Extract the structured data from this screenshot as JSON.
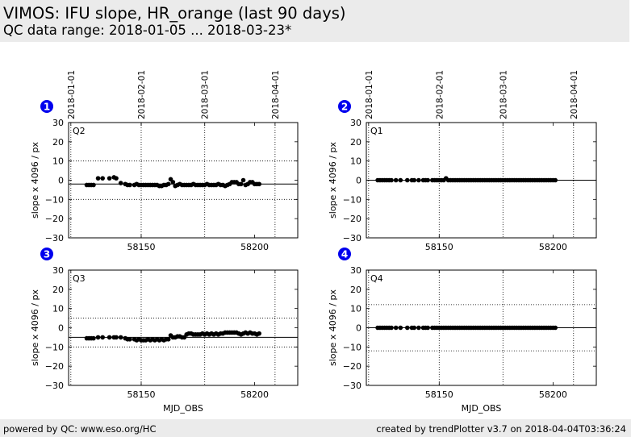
{
  "header": {
    "title": "VIMOS: IFU slope, HR_orange (last 90 days)",
    "subtitle": "QC data range: 2018-01-05 ... 2018-03-23*"
  },
  "footer": {
    "left_text": "powered by QC: www.eso.org/HC",
    "right_text": "created by trendPlotter v3.7 on 2018-04-04T03:36:24"
  },
  "colors": {
    "data": "#000000",
    "badge": "#0000ee",
    "header_bg": "#ebebeb"
  },
  "chart_data": [
    {
      "type": "scatter",
      "badge": "1",
      "quadrant_label": "Q2",
      "xlabel": "",
      "ylabel": "slope x 4096 / px",
      "xlim": [
        58118,
        58219
      ],
      "ylim": [
        -30,
        30
      ],
      "x_ticks": [
        58150,
        58200
      ],
      "y_ticks": [
        30,
        20,
        10,
        0,
        -10,
        -20,
        -30
      ],
      "date_ticks": [
        {
          "mjd": 58119,
          "label": "2018-01-01"
        },
        {
          "mjd": 58150,
          "label": "2018-02-01"
        },
        {
          "mjd": 58178,
          "label": "2018-03-01"
        },
        {
          "mjd": 58209,
          "label": "2018-04-01"
        }
      ],
      "reference_line": -2,
      "threshold_lines": [
        10,
        -10
      ],
      "x": [
        58126,
        58127,
        58128,
        58129,
        58131,
        58133,
        58136,
        58138,
        58139,
        58141,
        58143,
        58144,
        58145,
        58147,
        58148,
        58149,
        58150,
        58151,
        58152,
        58153,
        58154,
        58155,
        58156,
        58157,
        58158,
        58159,
        58160,
        58161,
        58162,
        58163,
        58164,
        58165,
        58166,
        58167,
        58168,
        58169,
        58170,
        58171,
        58172,
        58173,
        58174,
        58175,
        58176,
        58177,
        58178,
        58179,
        58180,
        58181,
        58182,
        58183,
        58184,
        58185,
        58186,
        58187,
        58188,
        58189,
        58190,
        58191,
        58192,
        58193,
        58194,
        58195,
        58196,
        58197,
        58198,
        58199,
        58200,
        58201,
        58202
      ],
      "y": [
        -2.5,
        -2.5,
        -2.5,
        -2.5,
        1,
        1,
        1,
        1.5,
        1,
        -1.5,
        -2,
        -2.5,
        -2.5,
        -2.5,
        -2,
        -2.5,
        -2.5,
        -2.5,
        -2.5,
        -2.5,
        -2.5,
        -2.5,
        -2.5,
        -2.5,
        -3,
        -3,
        -2.5,
        -2.5,
        -2,
        0.5,
        -1,
        -3,
        -2.5,
        -2,
        -2.5,
        -2.5,
        -2.5,
        -2.5,
        -2.5,
        -2,
        -2.5,
        -2.5,
        -2.5,
        -2.5,
        -2.5,
        -2,
        -2.5,
        -2.5,
        -2.5,
        -2.5,
        -2,
        -2.5,
        -2.5,
        -3,
        -2.5,
        -2,
        -1,
        -1,
        -1,
        -2,
        -2,
        0,
        -2.5,
        -2,
        -1,
        -1,
        -2,
        -2,
        -2
      ]
    },
    {
      "type": "scatter",
      "badge": "2",
      "quadrant_label": "Q1",
      "xlabel": "",
      "ylabel": "slope x 4096 / px",
      "xlim": [
        58118,
        58219
      ],
      "ylim": [
        -30,
        30
      ],
      "x_ticks": [
        58150,
        58200
      ],
      "y_ticks": [
        30,
        20,
        10,
        0,
        -10,
        -20,
        -30
      ],
      "date_ticks": [
        {
          "mjd": 58119,
          "label": "2018-01-01"
        },
        {
          "mjd": 58150,
          "label": "2018-02-01"
        },
        {
          "mjd": 58178,
          "label": "2018-03-01"
        },
        {
          "mjd": 58209,
          "label": "2018-04-01"
        }
      ],
      "reference_line": 0,
      "threshold_lines": [],
      "x": [
        58123,
        58124,
        58125,
        58126,
        58127,
        58128,
        58129,
        58131,
        58133,
        58136,
        58138,
        58139,
        58141,
        58143,
        58144,
        58145,
        58147,
        58148,
        58149,
        58150,
        58151,
        58152,
        58153,
        58154,
        58155,
        58156,
        58157,
        58158,
        58159,
        58160,
        58161,
        58162,
        58163,
        58164,
        58165,
        58166,
        58167,
        58168,
        58169,
        58170,
        58171,
        58172,
        58173,
        58174,
        58175,
        58176,
        58177,
        58178,
        58179,
        58180,
        58181,
        58182,
        58183,
        58184,
        58185,
        58186,
        58187,
        58188,
        58189,
        58190,
        58191,
        58192,
        58193,
        58194,
        58195,
        58196,
        58197,
        58198,
        58199,
        58200,
        58201
      ],
      "y": [
        0,
        0,
        0,
        0,
        0,
        0,
        0,
        0,
        0,
        0,
        0,
        0,
        0,
        0,
        0,
        0,
        0,
        0,
        0,
        0,
        0,
        0,
        1,
        0,
        0,
        0,
        0,
        0,
        0,
        0,
        0,
        0,
        0,
        0,
        0,
        0,
        0,
        0,
        0,
        0,
        0,
        0,
        0,
        0,
        0,
        0,
        0,
        0,
        0,
        0,
        0,
        0,
        0,
        0,
        0,
        0,
        0,
        0,
        0,
        0,
        0,
        0,
        0,
        0,
        0,
        0,
        0,
        0,
        0,
        0,
        0
      ]
    },
    {
      "type": "scatter",
      "badge": "3",
      "quadrant_label": "Q3",
      "xlabel": "MJD_OBS",
      "ylabel": "slope x 4096 / px",
      "xlim": [
        58118,
        58219
      ],
      "ylim": [
        -30,
        30
      ],
      "x_ticks": [
        58150,
        58200
      ],
      "y_ticks": [
        30,
        20,
        10,
        0,
        -10,
        -20,
        -30
      ],
      "date_ticks": [
        {
          "mjd": 58119,
          "label": ""
        },
        {
          "mjd": 58150,
          "label": ""
        },
        {
          "mjd": 58178,
          "label": ""
        },
        {
          "mjd": 58209,
          "label": ""
        }
      ],
      "reference_line": -5,
      "threshold_lines": [
        5,
        -10
      ],
      "x": [
        58126,
        58127,
        58128,
        58129,
        58131,
        58133,
        58136,
        58138,
        58139,
        58141,
        58143,
        58144,
        58145,
        58147,
        58148,
        58149,
        58150,
        58151,
        58152,
        58153,
        58154,
        58155,
        58156,
        58157,
        58158,
        58159,
        58160,
        58161,
        58162,
        58163,
        58164,
        58165,
        58166,
        58167,
        58168,
        58169,
        58170,
        58171,
        58172,
        58173,
        58174,
        58175,
        58176,
        58177,
        58178,
        58179,
        58180,
        58181,
        58182,
        58183,
        58184,
        58185,
        58186,
        58187,
        58188,
        58189,
        58190,
        58191,
        58192,
        58193,
        58194,
        58195,
        58196,
        58197,
        58198,
        58199,
        58200,
        58201,
        58202
      ],
      "y": [
        -5.5,
        -5.5,
        -5.5,
        -5.5,
        -5,
        -5,
        -5,
        -5,
        -5,
        -5,
        -5.5,
        -6,
        -6,
        -6,
        -6.5,
        -6,
        -6.5,
        -6.5,
        -6.5,
        -6,
        -6.5,
        -6,
        -6.5,
        -6,
        -6.5,
        -6,
        -6.5,
        -6,
        -6,
        -4,
        -5,
        -5,
        -4.5,
        -4.5,
        -5,
        -5,
        -3.5,
        -3,
        -3,
        -3.5,
        -3.5,
        -3.5,
        -3.5,
        -3,
        -3.5,
        -3,
        -3.5,
        -3,
        -3.5,
        -3,
        -3.5,
        -3,
        -3,
        -2.5,
        -2.5,
        -2.5,
        -2.5,
        -2.5,
        -2.5,
        -3,
        -3.5,
        -3,
        -2.5,
        -3,
        -2.5,
        -3,
        -3,
        -3.5,
        -3
      ]
    },
    {
      "type": "scatter",
      "badge": "4",
      "quadrant_label": "Q4",
      "xlabel": "MJD_OBS",
      "ylabel": "slope x 4096 / px",
      "xlim": [
        58118,
        58219
      ],
      "ylim": [
        -30,
        30
      ],
      "x_ticks": [
        58150,
        58200
      ],
      "y_ticks": [
        30,
        20,
        10,
        0,
        -10,
        -20,
        -30
      ],
      "date_ticks": [
        {
          "mjd": 58119,
          "label": ""
        },
        {
          "mjd": 58150,
          "label": ""
        },
        {
          "mjd": 58178,
          "label": ""
        },
        {
          "mjd": 58209,
          "label": ""
        }
      ],
      "reference_line": 0,
      "threshold_lines": [
        12,
        -12
      ],
      "x": [
        58123,
        58124,
        58125,
        58126,
        58127,
        58128,
        58129,
        58131,
        58133,
        58136,
        58138,
        58139,
        58141,
        58143,
        58144,
        58145,
        58147,
        58148,
        58149,
        58150,
        58151,
        58152,
        58153,
        58154,
        58155,
        58156,
        58157,
        58158,
        58159,
        58160,
        58161,
        58162,
        58163,
        58164,
        58165,
        58166,
        58167,
        58168,
        58169,
        58170,
        58171,
        58172,
        58173,
        58174,
        58175,
        58176,
        58177,
        58178,
        58179,
        58180,
        58181,
        58182,
        58183,
        58184,
        58185,
        58186,
        58187,
        58188,
        58189,
        58190,
        58191,
        58192,
        58193,
        58194,
        58195,
        58196,
        58197,
        58198,
        58199,
        58200,
        58201
      ],
      "y": [
        0,
        0,
        0,
        0,
        0,
        0,
        0,
        0,
        0,
        0,
        0,
        0,
        0,
        0,
        0,
        0,
        0,
        0,
        0,
        0,
        0,
        0,
        0,
        0,
        0,
        0,
        0,
        0,
        0,
        0,
        0,
        0,
        0,
        0,
        0,
        0,
        0,
        0,
        0,
        0,
        0,
        0,
        0,
        0,
        0,
        0,
        0,
        0,
        0,
        0,
        0,
        0,
        0,
        0,
        0,
        0,
        0,
        0,
        0,
        0,
        0,
        0,
        0,
        0,
        0,
        0,
        0,
        0,
        0,
        0,
        0
      ]
    }
  ]
}
